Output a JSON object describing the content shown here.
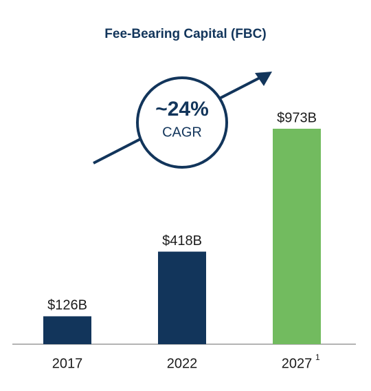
{
  "chart_data": {
    "type": "bar",
    "title": "Fee-Bearing Capital (FBC)",
    "categories": [
      "2017",
      "2022",
      "2027"
    ],
    "category_superscripts": [
      null,
      null,
      "1"
    ],
    "values": [
      126,
      418,
      973
    ],
    "value_labels": [
      "$126B",
      "$418B",
      "$973B"
    ],
    "colors": [
      "#12355b",
      "#12355b",
      "#72bb5f"
    ],
    "annotation": {
      "value": "~24%",
      "label": "CAGR"
    }
  }
}
